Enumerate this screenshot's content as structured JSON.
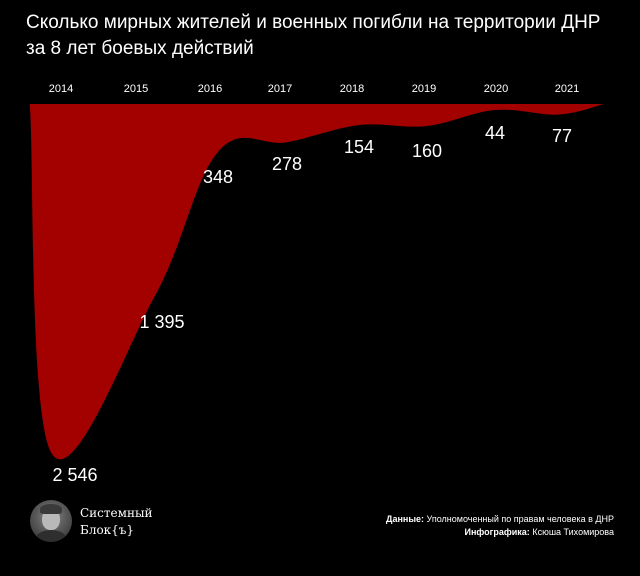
{
  "title": {
    "line1": "Сколько мирных жителей и военных погибли на территории ДНР",
    "line2": "за 8 лет боевых действий"
  },
  "chart_data": {
    "type": "area",
    "categories": [
      "2014",
      "2015",
      "2016",
      "2017",
      "2018",
      "2019",
      "2020",
      "2021"
    ],
    "values": [
      2546,
      1395,
      348,
      278,
      154,
      160,
      44,
      77
    ],
    "data_labels": [
      "2 546",
      "1 395",
      "348",
      "278",
      "154",
      "160",
      "44",
      "77"
    ],
    "orientation": "downward",
    "ylim": [
      0,
      2546
    ],
    "grid": false,
    "fill_color": "#a30000"
  },
  "footer": {
    "brand": {
      "line1": "Системный",
      "line2": "Блок{ъ}"
    },
    "credits": {
      "data_label": "Данные:",
      "data_value": "Уполномоченный по правам человека в ДНР",
      "graphics_label": "Инфографика:",
      "graphics_value": "Ксюша Тихомирова"
    }
  },
  "colors": {
    "background": "#000000",
    "area": "#a30000",
    "text": "#ffffff"
  }
}
